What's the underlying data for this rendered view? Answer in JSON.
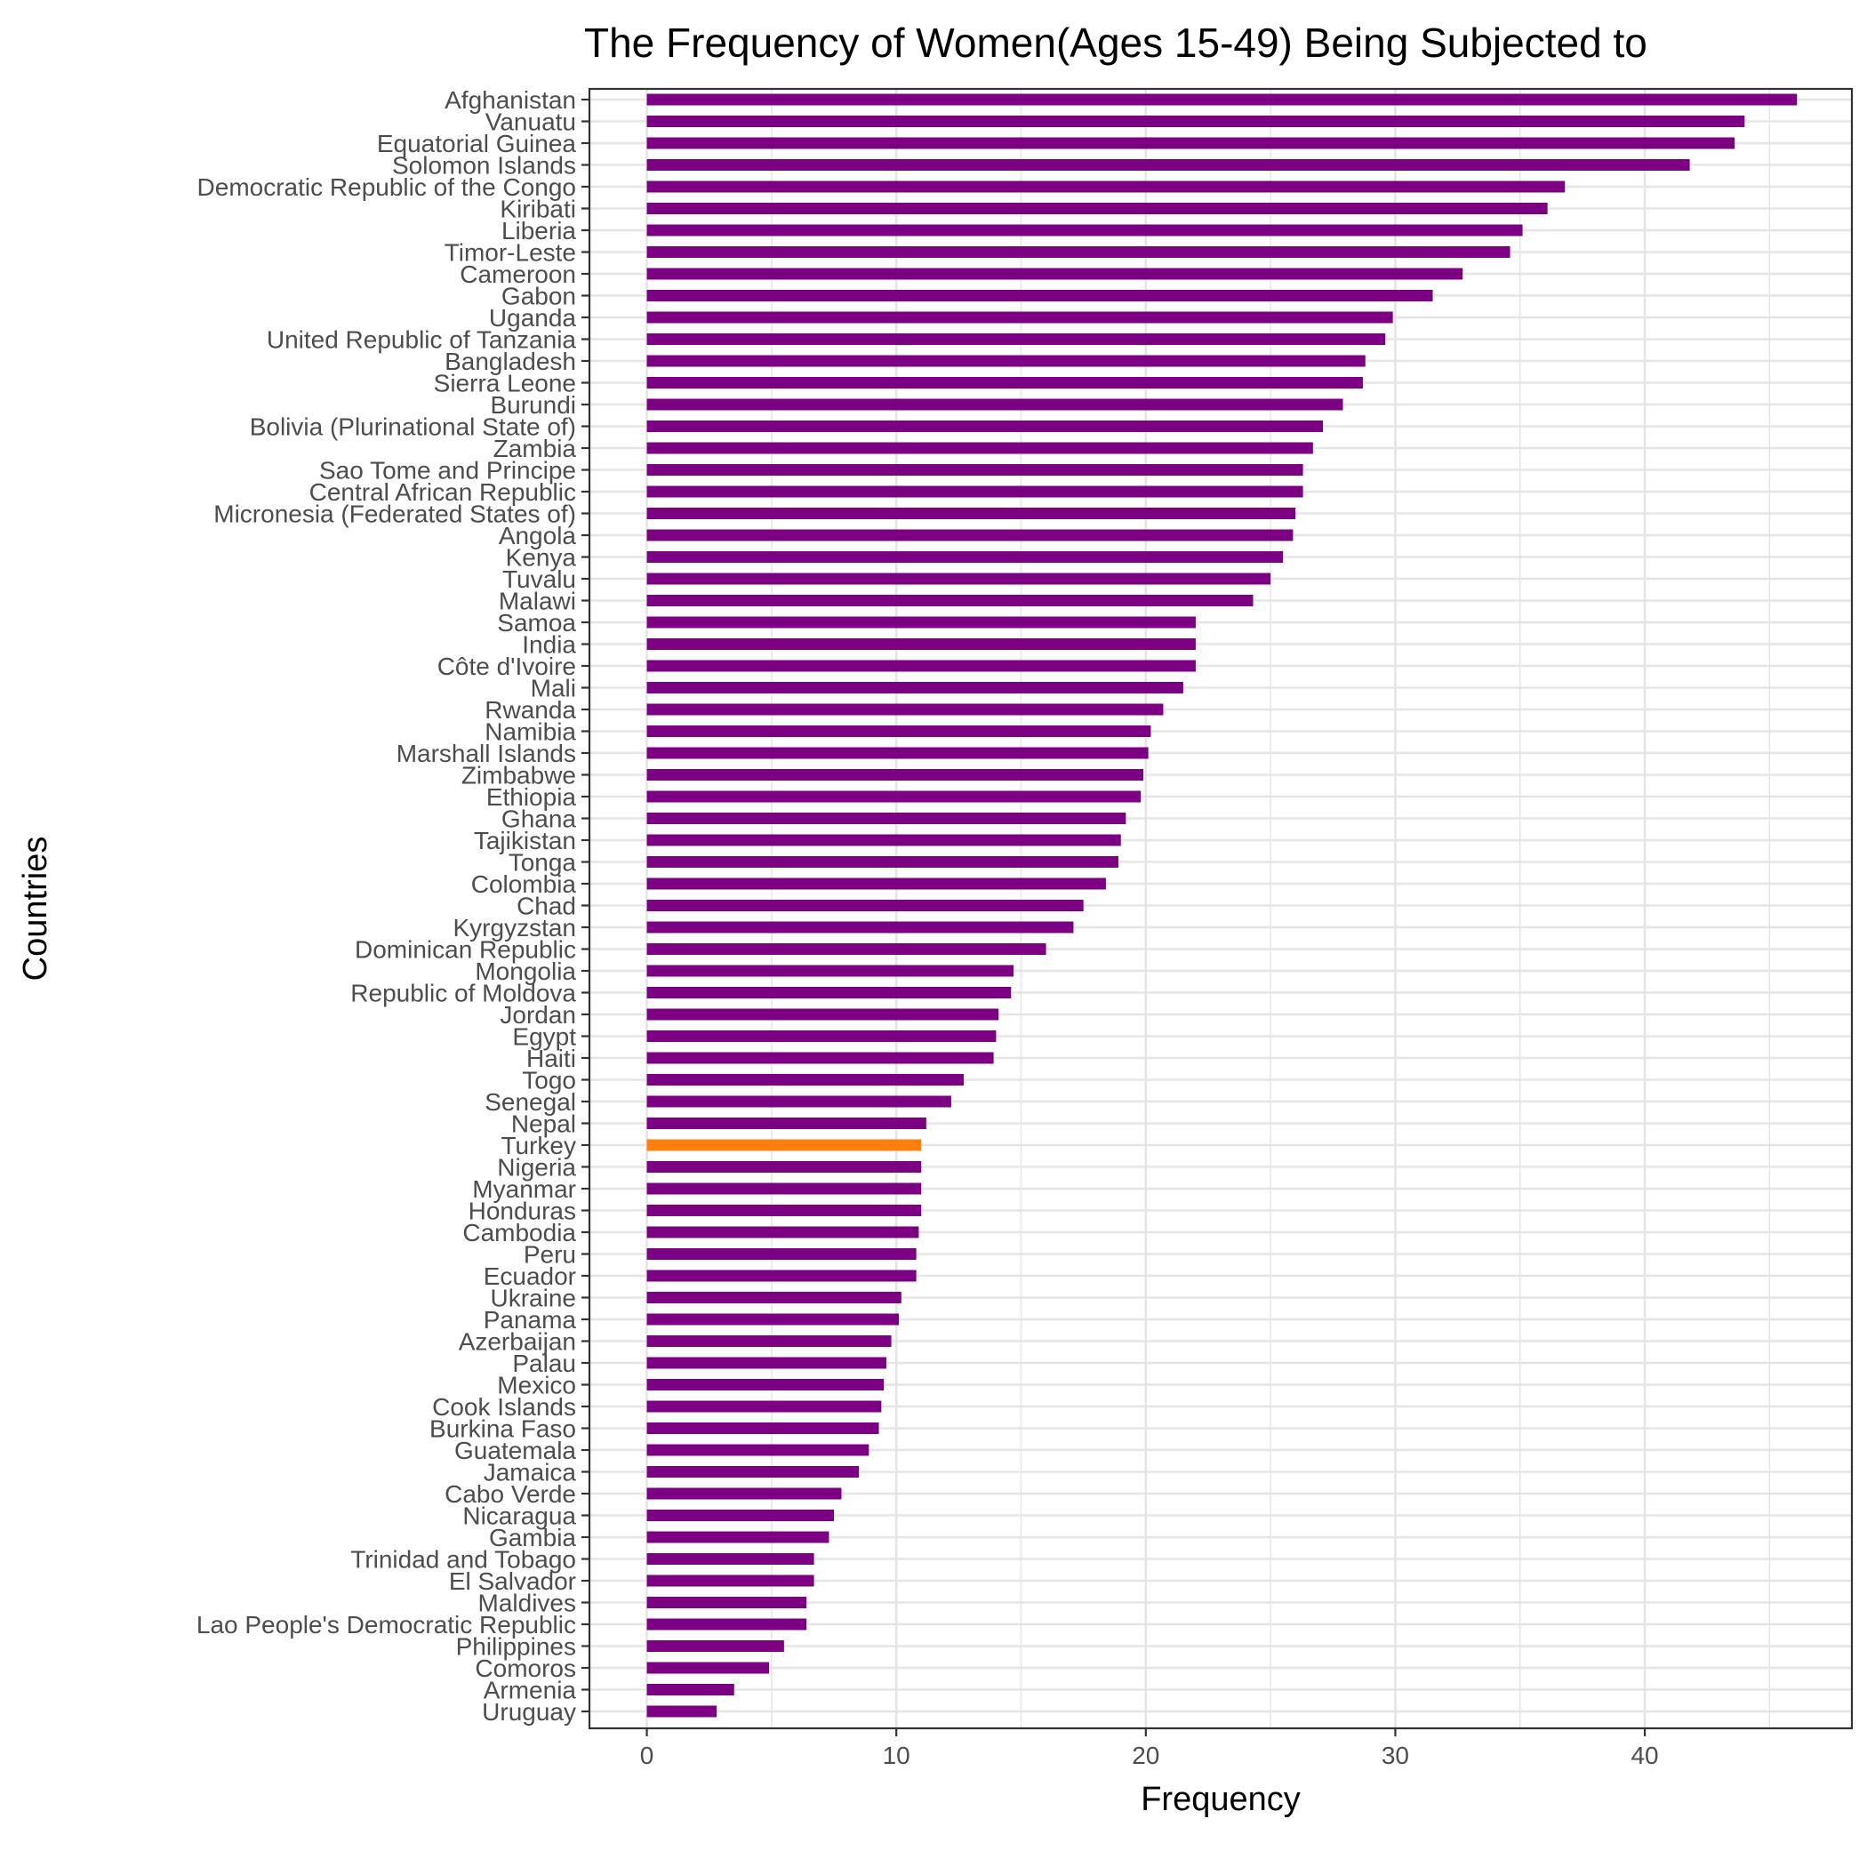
{
  "chart_data": {
    "type": "bar",
    "orientation": "horizontal",
    "title": "The Frequency of Women(Ages 15-49) Being Subjected to",
    "xlabel": "Frequency",
    "ylabel": "Countries",
    "xlim": [
      -2.3,
      48.3
    ],
    "x_ticks": [
      0,
      10,
      20,
      30,
      40
    ],
    "grid": true,
    "legend": "none",
    "colors": {
      "default": "#7b0082",
      "highlight": "#ff7f0e",
      "grid": "#e5e5e5",
      "axis": "#333333"
    },
    "highlight": "Turkey",
    "categories": [
      "Afghanistan",
      "Vanuatu",
      "Equatorial Guinea",
      "Solomon Islands",
      "Democratic Republic of the Congo",
      "Kiribati",
      "Liberia",
      "Timor-Leste",
      "Cameroon",
      "Gabon",
      "Uganda",
      "United Republic of Tanzania",
      "Bangladesh",
      "Sierra Leone",
      "Burundi",
      "Bolivia (Plurinational State of)",
      "Zambia",
      "Sao Tome and Principe",
      "Central African Republic",
      "Micronesia (Federated States of)",
      "Angola",
      "Kenya",
      "Tuvalu",
      "Malawi",
      "Samoa",
      "India",
      "Côte d'Ivoire",
      "Mali",
      "Rwanda",
      "Namibia",
      "Marshall Islands",
      "Zimbabwe",
      "Ethiopia",
      "Ghana",
      "Tajikistan",
      "Tonga",
      "Colombia",
      "Chad",
      "Kyrgyzstan",
      "Dominican Republic",
      "Mongolia",
      "Republic of Moldova",
      "Jordan",
      "Egypt",
      "Haiti",
      "Togo",
      "Senegal",
      "Nepal",
      "Turkey",
      "Nigeria",
      "Myanmar",
      "Honduras",
      "Cambodia",
      "Peru",
      "Ecuador",
      "Ukraine",
      "Panama",
      "Azerbaijan",
      "Palau",
      "Mexico",
      "Cook Islands",
      "Burkina Faso",
      "Guatemala",
      "Jamaica",
      "Cabo Verde",
      "Nicaragua",
      "Gambia",
      "Trinidad and Tobago",
      "El Salvador",
      "Maldives",
      "Lao People's Democratic Republic",
      "Philippines",
      "Comoros",
      "Armenia",
      "Uruguay"
    ],
    "values": [
      46.1,
      44.0,
      43.6,
      41.8,
      36.8,
      36.1,
      35.1,
      34.6,
      32.7,
      31.5,
      29.9,
      29.6,
      28.8,
      28.7,
      27.9,
      27.1,
      26.7,
      26.3,
      26.3,
      26.0,
      25.9,
      25.5,
      25.0,
      24.3,
      22.0,
      22.0,
      22.0,
      21.5,
      20.7,
      20.2,
      20.1,
      19.9,
      19.8,
      19.2,
      19.0,
      18.9,
      18.4,
      17.5,
      17.1,
      16.0,
      14.7,
      14.6,
      14.1,
      14.0,
      13.9,
      12.7,
      12.2,
      11.2,
      11.0,
      11.0,
      11.0,
      11.0,
      10.9,
      10.8,
      10.8,
      10.2,
      10.1,
      9.8,
      9.6,
      9.5,
      9.4,
      9.3,
      8.9,
      8.5,
      7.8,
      7.5,
      7.3,
      6.7,
      6.7,
      6.4,
      6.4,
      5.5,
      4.9,
      3.5,
      2.8
    ]
  }
}
